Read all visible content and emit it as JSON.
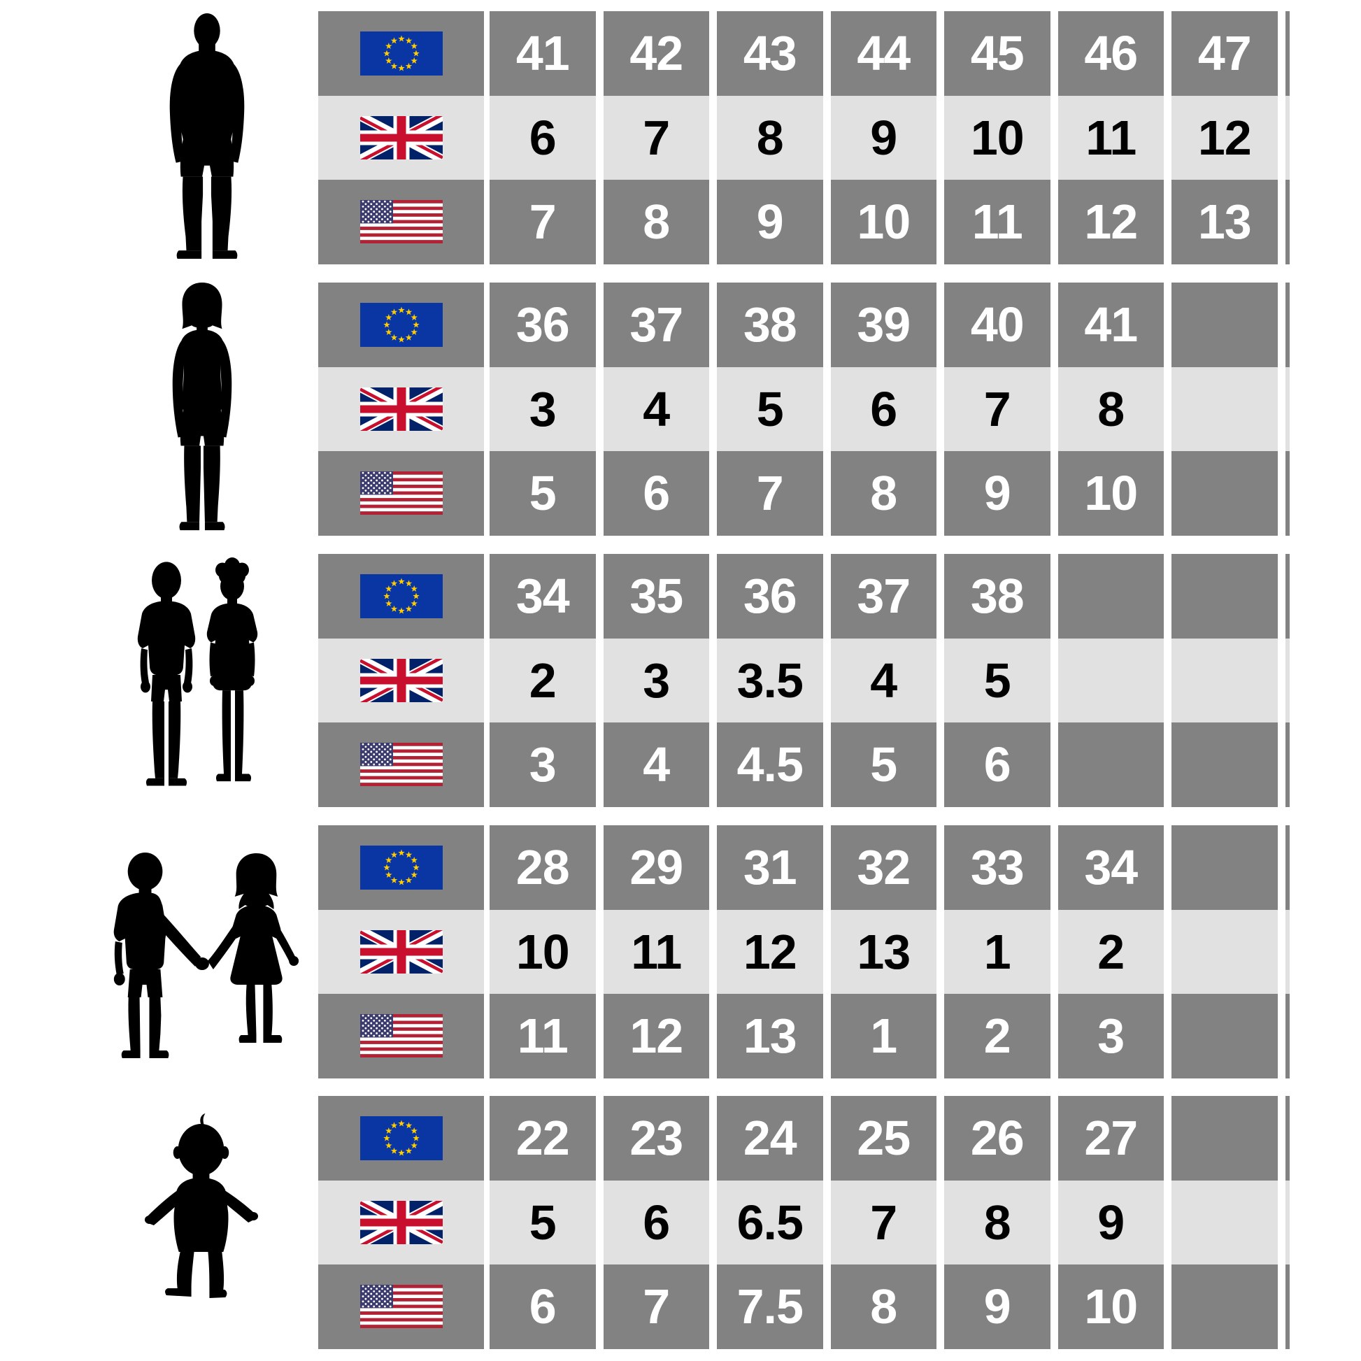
{
  "colors": {
    "row_dark": "#828282",
    "row_light": "#e1e1e1",
    "background": "#ffffff",
    "text_on_dark": "#ffffff",
    "text_on_light": "#000000",
    "silhouette": "#000000",
    "eu_blue": "#0a36a4",
    "star_gold": "#ffcc00",
    "uk_blue": "#012169",
    "uk_red": "#c8102e",
    "us_red": "#b22234",
    "us_blue": "#3c3b6e"
  },
  "groups": [
    {
      "figure": "man",
      "rows": [
        {
          "flag": "eu-flag",
          "shade": "dark",
          "values": [
            "41",
            "42",
            "43",
            "44",
            "45",
            "46",
            "47"
          ]
        },
        {
          "flag": "uk-flag",
          "shade": "light",
          "values": [
            "6",
            "7",
            "8",
            "9",
            "10",
            "11",
            "12"
          ]
        },
        {
          "flag": "us-flag",
          "shade": "dark",
          "values": [
            "7",
            "8",
            "9",
            "10",
            "11",
            "12",
            "13"
          ]
        }
      ]
    },
    {
      "figure": "woman",
      "rows": [
        {
          "flag": "eu-flag",
          "shade": "dark",
          "values": [
            "36",
            "37",
            "38",
            "39",
            "40",
            "41",
            ""
          ]
        },
        {
          "flag": "uk-flag",
          "shade": "light",
          "values": [
            "3",
            "4",
            "5",
            "6",
            "7",
            "8",
            ""
          ]
        },
        {
          "flag": "us-flag",
          "shade": "dark",
          "values": [
            "5",
            "6",
            "7",
            "8",
            "9",
            "10",
            ""
          ]
        }
      ]
    },
    {
      "figure": "children",
      "rows": [
        {
          "flag": "eu-flag",
          "shade": "dark",
          "values": [
            "34",
            "35",
            "36",
            "37",
            "38",
            "",
            ""
          ]
        },
        {
          "flag": "uk-flag",
          "shade": "light",
          "values": [
            "2",
            "3",
            "3.5",
            "4",
            "5",
            "",
            ""
          ]
        },
        {
          "flag": "us-flag",
          "shade": "dark",
          "values": [
            "3",
            "4",
            "4.5",
            "5",
            "6",
            "",
            ""
          ]
        }
      ]
    },
    {
      "figure": "young-children",
      "rows": [
        {
          "flag": "eu-flag",
          "shade": "dark",
          "values": [
            "28",
            "29",
            "31",
            "32",
            "33",
            "34",
            ""
          ]
        },
        {
          "flag": "uk-flag",
          "shade": "light",
          "values": [
            "10",
            "11",
            "12",
            "13",
            "1",
            "2",
            ""
          ]
        },
        {
          "flag": "us-flag",
          "shade": "dark",
          "values": [
            "11",
            "12",
            "13",
            "1",
            "2",
            "3",
            ""
          ]
        }
      ]
    },
    {
      "figure": "toddler",
      "rows": [
        {
          "flag": "eu-flag",
          "shade": "dark",
          "values": [
            "22",
            "23",
            "24",
            "25",
            "26",
            "27",
            ""
          ]
        },
        {
          "flag": "uk-flag",
          "shade": "light",
          "values": [
            "5",
            "6",
            "6.5",
            "7",
            "8",
            "9",
            ""
          ]
        },
        {
          "flag": "us-flag",
          "shade": "dark",
          "values": [
            "6",
            "7",
            "7.5",
            "8",
            "9",
            "10",
            ""
          ]
        }
      ]
    }
  ],
  "chart_data": [
    {
      "type": "table",
      "figure": "man",
      "series": [
        {
          "name": "EU",
          "values": [
            41,
            42,
            43,
            44,
            45,
            46,
            47
          ]
        },
        {
          "name": "UK",
          "values": [
            6,
            7,
            8,
            9,
            10,
            11,
            12
          ]
        },
        {
          "name": "US",
          "values": [
            7,
            8,
            9,
            10,
            11,
            12,
            13
          ]
        }
      ]
    },
    {
      "type": "table",
      "figure": "woman",
      "series": [
        {
          "name": "EU",
          "values": [
            36,
            37,
            38,
            39,
            40,
            41
          ]
        },
        {
          "name": "UK",
          "values": [
            3,
            4,
            5,
            6,
            7,
            8
          ]
        },
        {
          "name": "US",
          "values": [
            5,
            6,
            7,
            8,
            9,
            10
          ]
        }
      ]
    },
    {
      "type": "table",
      "figure": "children",
      "series": [
        {
          "name": "EU",
          "values": [
            34,
            35,
            36,
            37,
            38
          ]
        },
        {
          "name": "UK",
          "values": [
            2,
            3,
            3.5,
            4,
            5
          ]
        },
        {
          "name": "US",
          "values": [
            3,
            4,
            4.5,
            5,
            6
          ]
        }
      ]
    },
    {
      "type": "table",
      "figure": "young-children",
      "series": [
        {
          "name": "EU",
          "values": [
            28,
            29,
            31,
            32,
            33,
            34
          ]
        },
        {
          "name": "UK",
          "values": [
            10,
            11,
            12,
            13,
            1,
            2
          ]
        },
        {
          "name": "US",
          "values": [
            11,
            12,
            13,
            1,
            2,
            3
          ]
        }
      ]
    },
    {
      "type": "table",
      "figure": "toddler",
      "series": [
        {
          "name": "EU",
          "values": [
            22,
            23,
            24,
            25,
            26,
            27
          ]
        },
        {
          "name": "UK",
          "values": [
            5,
            6,
            6.5,
            7,
            8,
            9
          ]
        },
        {
          "name": "US",
          "values": [
            6,
            7,
            7.5,
            8,
            9,
            10
          ]
        }
      ]
    }
  ]
}
